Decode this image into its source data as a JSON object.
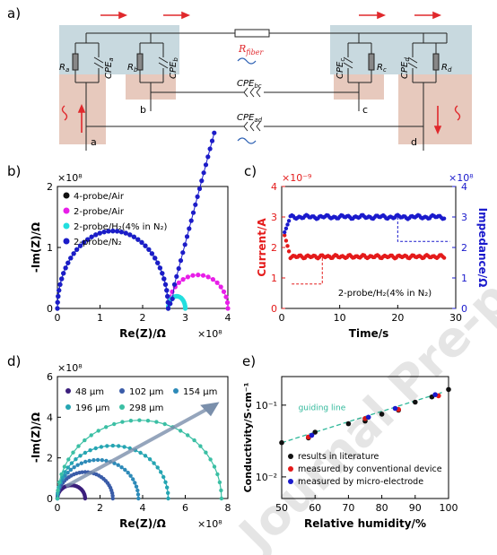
{
  "panels": {
    "a": {
      "label": "a)",
      "labels": {
        "r_fiber": "R",
        "r_fiber_sub": "fiber",
        "ra": "R",
        "ra_sub": "a",
        "cpea": "CPE",
        "cpea_sub": "a",
        "rb": "R",
        "rb_sub": "b",
        "cpeb": "CPE",
        "cpeb_sub": "b",
        "rc": "R",
        "rc_sub": "c",
        "cpec": "CPE",
        "cpec_sub": "c",
        "rd": "R",
        "rd_sub": "d",
        "cped": "CPE",
        "cped_sub": "d",
        "cpebc": "CPE",
        "cpebc_sub": "bc",
        "cpead": "CPE",
        "cpead_sub": "ad",
        "node_a": "a",
        "node_b": "b",
        "node_c": "c",
        "node_d": "d"
      },
      "colors": {
        "substrate": "#c8d9df",
        "electrode": "#e7c9bd",
        "arrow": "#e0282c",
        "wave": "#2b5fb3"
      }
    },
    "b": {
      "label": "b)"
    },
    "c": {
      "label": "c)"
    },
    "d": {
      "label": "d)"
    },
    "e": {
      "label": "e)"
    }
  },
  "watermark": "Journal Pre-proof",
  "chart_data": [
    {
      "panel": "b",
      "type": "scatter",
      "xlabel": "Re(Z)/Ω",
      "ylabel": "-Im(Z)/Ω",
      "x_exponent": "×10⁸",
      "y_exponent": "×10⁸",
      "xlim": [
        0,
        4
      ],
      "ylim": [
        0,
        2
      ],
      "xticks": [
        "0",
        "1",
        "2",
        "3",
        "4"
      ],
      "yticks": [
        "0",
        "1",
        "2"
      ],
      "legend_position": "top-left",
      "series": [
        {
          "name": "4-probe/Air",
          "color": "#111111",
          "kind": "arc",
          "r0": 0,
          "r1": 2.6,
          "h": 1.27
        },
        {
          "name": "2-probe/Air",
          "color": "#e81ee8",
          "kind": "arc2",
          "r0": 0,
          "r1": 2.6,
          "h": 1.27,
          "r2": 4.0,
          "h2": 0.55
        },
        {
          "name": "2-probe/H₂(4% in N₂)",
          "color": "#22dede",
          "kind": "arc2",
          "r0": 0,
          "r1": 2.6,
          "h": 1.27,
          "r2": 3.0,
          "h2": 0.2
        },
        {
          "name": "2-probe/N₂",
          "color": "#1c1cc8",
          "kind": "arcline",
          "r0": 0,
          "r1": 2.6,
          "h": 1.27,
          "x2": 3.68,
          "y2": 2.88
        }
      ]
    },
    {
      "panel": "c",
      "type": "line",
      "xlabel": "Time/s",
      "ylabel_left": "Current/A",
      "ylabel_right": "Impedance/Ω",
      "left_exponent": "×10⁻⁹",
      "right_exponent": "×10⁸",
      "xlim": [
        0,
        30
      ],
      "ylim_left": [
        0,
        4
      ],
      "ylim_right": [
        0,
        4
      ],
      "xticks": [
        "0",
        "10",
        "20",
        "30"
      ],
      "yticks_left": [
        "0",
        "1",
        "2",
        "3",
        "4"
      ],
      "yticks_right": [
        "0",
        "1",
        "2",
        "3",
        "4"
      ],
      "annotation": "2-probe/H₂(4% in N₂)",
      "series": [
        {
          "name": "Current",
          "color": "#e41a1a",
          "axis": "left",
          "start": [
            0.5,
            2.4
          ],
          "level": 1.7
        },
        {
          "name": "Impedance",
          "color": "#1a1acc",
          "axis": "right",
          "start": [
            0.5,
            2.5
          ],
          "level": 3.0
        }
      ]
    },
    {
      "panel": "d",
      "type": "scatter",
      "xlabel": "Re(Z)/Ω",
      "ylabel": "-Im(Z)/Ω",
      "x_exponent": "×10⁸",
      "y_exponent": "×10⁸",
      "xlim": [
        0,
        8
      ],
      "ylim": [
        0,
        6
      ],
      "xticks": [
        "0",
        "2",
        "4",
        "6",
        "8"
      ],
      "yticks": [
        "0",
        "2",
        "4",
        "6"
      ],
      "series": [
        {
          "name": "48 μm",
          "color": "#3b1e7c",
          "diameter": 1.3
        },
        {
          "name": "102 μm",
          "color": "#3a5ca8",
          "diameter": 2.6
        },
        {
          "name": "154 μm",
          "color": "#2d8ab8",
          "diameter": 3.8
        },
        {
          "name": "196 μm",
          "color": "#25a5b2",
          "diameter": 5.2
        },
        {
          "name": "298 μm",
          "color": "#3bbfa4",
          "diameter": 7.7
        }
      ]
    },
    {
      "panel": "e",
      "type": "scatter",
      "xlabel": "Relative humidity/%",
      "ylabel": "Conductivity/S·cm⁻¹",
      "xscale": "linear",
      "yscale": "log",
      "xlim": [
        50,
        100
      ],
      "ylim": [
        0.005,
        0.25
      ],
      "xticks": [
        "50",
        "60",
        "70",
        "80",
        "90",
        "100"
      ],
      "yticks": [
        "10⁻²",
        "10⁻¹"
      ],
      "guide_label": "guiding line",
      "legend_position": "bottom-left",
      "series": [
        {
          "name": "results in literature",
          "color": "#111111",
          "x": [
            50,
            58,
            60,
            70,
            75,
            80,
            85,
            90,
            95,
            100
          ],
          "y": [
            0.03,
            0.035,
            0.042,
            0.055,
            0.06,
            0.075,
            0.085,
            0.11,
            0.13,
            0.165
          ]
        },
        {
          "name": "measured by conventional device",
          "color": "#e41a1a",
          "x": [
            58,
            75,
            85,
            97
          ],
          "y": [
            0.036,
            0.065,
            0.087,
            0.135
          ]
        },
        {
          "name": "measured by micro-electrode",
          "color": "#1a1acc",
          "x": [
            59,
            76,
            84,
            96
          ],
          "y": [
            0.038,
            0.068,
            0.09,
            0.14
          ]
        }
      ]
    }
  ]
}
